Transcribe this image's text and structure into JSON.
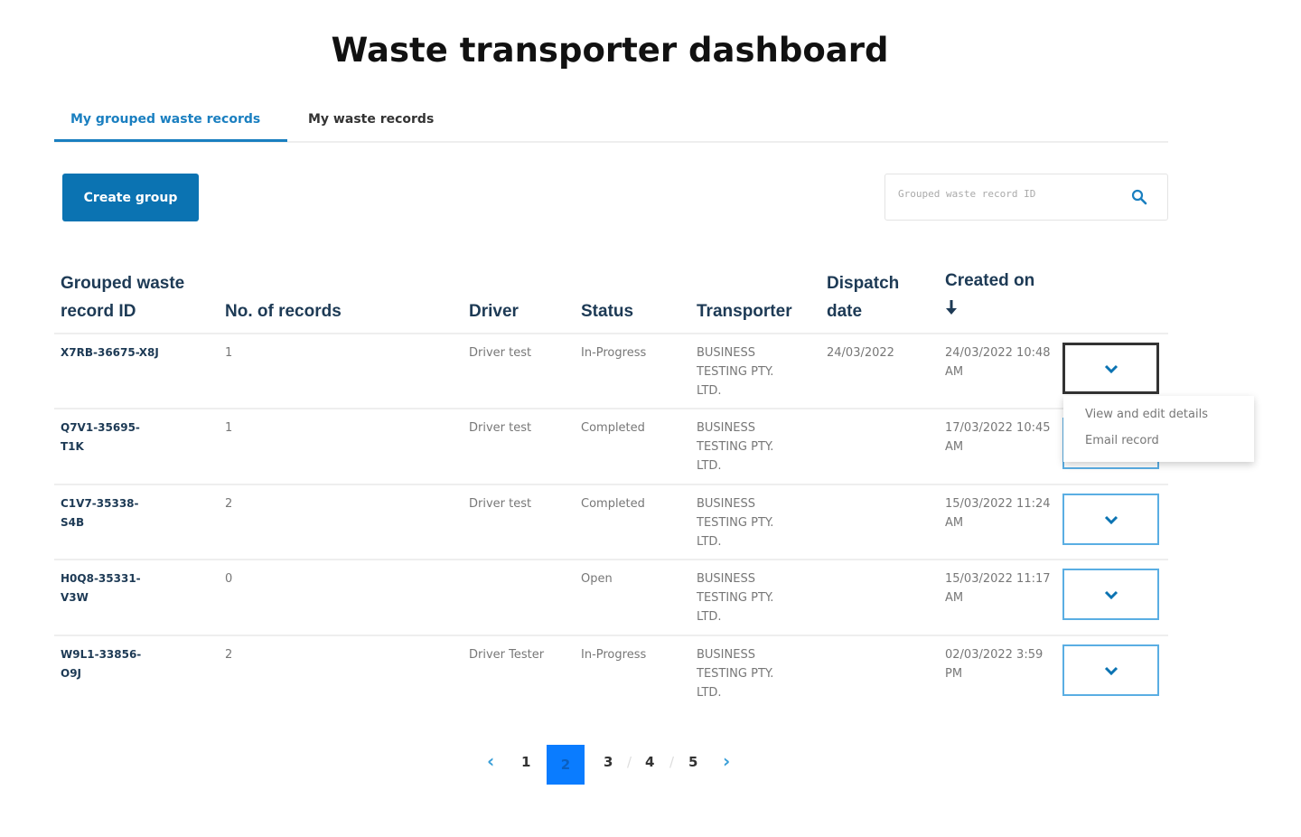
{
  "title": "Waste transporter dashboard",
  "tabs": [
    {
      "label": "My grouped waste records",
      "active": true
    },
    {
      "label": "My waste records",
      "active": false
    }
  ],
  "create_button": "Create group",
  "search": {
    "placeholder": "Grouped waste record ID",
    "icon": "search-icon"
  },
  "columns": {
    "id": "Grouped waste record ID",
    "records": "No. of records",
    "driver": "Driver",
    "status": "Status",
    "transporter": "Transporter",
    "dispatch": "Dispatch date",
    "created": "Created on",
    "sort_icon": "arrow-down-icon"
  },
  "rows": [
    {
      "id": "X7RB-36675-X8J",
      "records": "1",
      "driver": "Driver test",
      "status": "In-Progress",
      "transporter": "BUSINESS TESTING PTY. LTD.",
      "dispatch": "24/03/2022",
      "created": "24/03/2022 10:48 AM"
    },
    {
      "id": "Q7V1-35695-T1K",
      "records": "1",
      "driver": "Driver test",
      "status": "Completed",
      "transporter": "BUSINESS TESTING PTY. LTD.",
      "dispatch": "",
      "created": "17/03/2022 10:45 AM"
    },
    {
      "id": "C1V7-35338-S4B",
      "records": "2",
      "driver": "Driver test",
      "status": "Completed",
      "transporter": "BUSINESS TESTING PTY. LTD.",
      "dispatch": "",
      "created": "15/03/2022 11:24 AM"
    },
    {
      "id": "H0Q8-35331-V3W",
      "records": "0",
      "driver": "",
      "status": "Open",
      "transporter": "BUSINESS TESTING PTY. LTD.",
      "dispatch": "",
      "created": "15/03/2022 11:17 AM"
    },
    {
      "id": "W9L1-33856-O9J",
      "records": "2",
      "driver": "Driver Tester",
      "status": "In-Progress",
      "transporter": "BUSINESS TESTING PTY. LTD.",
      "dispatch": "",
      "created": "02/03/2022 3:59 PM"
    }
  ],
  "row_menu": {
    "items": [
      "View and edit details",
      "Email record"
    ]
  },
  "pagination": {
    "prev": "‹",
    "next": "›",
    "pages": [
      "1",
      "2",
      "3",
      "4",
      "5"
    ],
    "current": "2"
  },
  "colors": {
    "accent": "#0b73b2",
    "active_page": "#0a7cff"
  }
}
